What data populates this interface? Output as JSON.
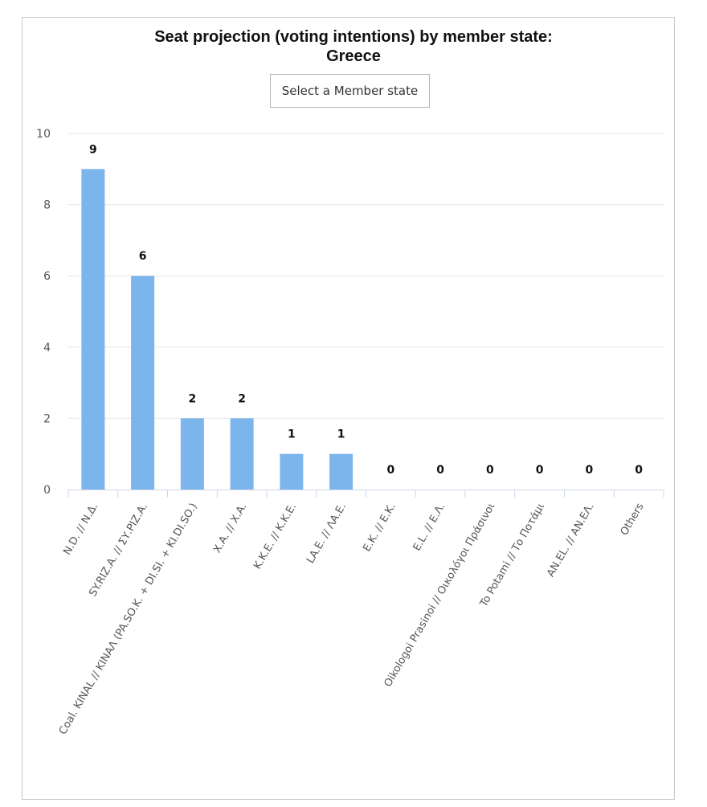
{
  "header": {
    "title_line1": "Seat projection (voting intentions) by member state:",
    "title_line2": "Greece",
    "select_label": "Select a Member state"
  },
  "chart_data": {
    "type": "bar",
    "title": "Seat projection (voting intentions) by member state: Greece",
    "xlabel": "",
    "ylabel": "",
    "ylim": [
      0,
      10
    ],
    "yticks": [
      0,
      2,
      4,
      6,
      8,
      10
    ],
    "grid": true,
    "bar_color": "#7cb5ec",
    "categories": [
      "N.D. // Ν.Δ.",
      "SY.RIZ.A. // ΣΥ.ΡΙΖ.Α.",
      "Coal. KINAL // KINAΛ (PA.SO.K. + DI.SI. + KI.DI.SO.)",
      "X.A. // Χ.Α.",
      "K.K.E. // Κ.Κ.Ε.",
      "LA.E. // ΛΑ.Ε.",
      "E.K. // Ε.Κ.",
      "E.L. // Ε.Λ.",
      "Oikologoi Prasinoi // Οικολόγοι Πράσινοι",
      "To Potami // Το Ποτάμι",
      "AN.EL. // ΑΝ.ΕΛ.",
      "Others"
    ],
    "values": [
      9,
      6,
      2,
      2,
      1,
      1,
      0,
      0,
      0,
      0,
      0,
      0
    ]
  }
}
